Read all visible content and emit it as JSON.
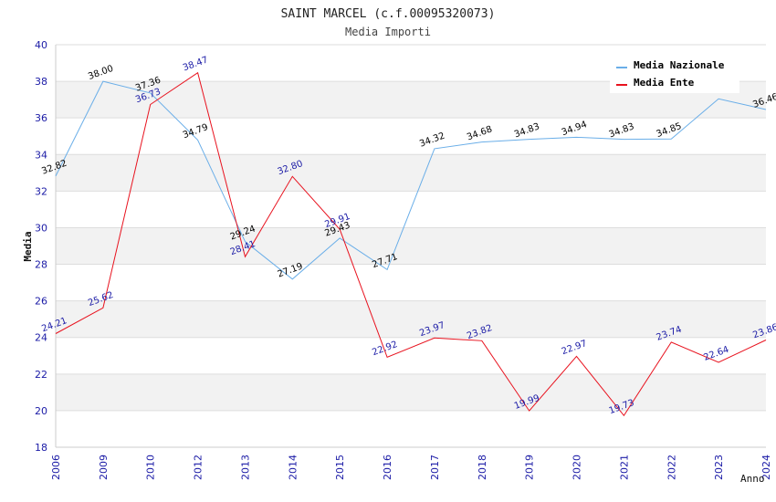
{
  "chart_data": {
    "type": "line",
    "title": "SAINT MARCEL (c.f.00095320073)",
    "subtitle": "Media Importi",
    "xlabel": "Anno",
    "ylabel": "Media",
    "ylim": [
      18,
      40
    ],
    "yticks": [
      18,
      20,
      22,
      24,
      26,
      28,
      30,
      32,
      34,
      36,
      38,
      40
    ],
    "categories": [
      "2006",
      "2009",
      "2010",
      "2012",
      "2013",
      "2014",
      "2015",
      "2016",
      "2017",
      "2018",
      "2019",
      "2020",
      "2021",
      "2022",
      "2023",
      "2024"
    ],
    "series": [
      {
        "name": "Media Nazionale",
        "color": "#6aaee8",
        "values": [
          32.82,
          38.0,
          37.36,
          34.79,
          29.24,
          27.19,
          29.43,
          27.71,
          34.32,
          34.68,
          34.83,
          34.94,
          34.83,
          34.85,
          37.04,
          36.46
        ],
        "labels": [
          "32.82",
          "38.00",
          "37.36",
          "34.79",
          "29.24",
          "27.19",
          "29.43",
          "27.71",
          "34.32",
          "34.68",
          "34.83",
          "34.94",
          "34.83",
          "34.85",
          "",
          "36.46"
        ]
      },
      {
        "name": "Media Ente",
        "color": "#e8121e",
        "values": [
          24.21,
          25.62,
          36.73,
          38.47,
          28.41,
          32.8,
          29.91,
          22.92,
          23.97,
          23.82,
          19.99,
          22.97,
          19.73,
          23.74,
          22.64,
          23.86
        ],
        "labels": [
          "24.21",
          "25.62",
          "36.73",
          "38.47",
          "28.41",
          "32.80",
          "29.91",
          "22.92",
          "23.97",
          "23.82",
          "19.99",
          "22.97",
          "19.73",
          "23.74",
          "22.64",
          "23.86"
        ]
      }
    ],
    "legend": "top-right"
  }
}
